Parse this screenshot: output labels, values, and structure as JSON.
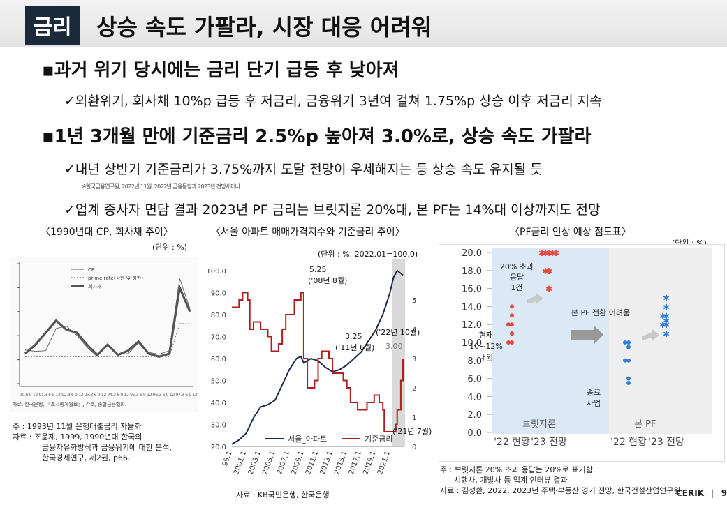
{
  "header": {
    "tag": "금리",
    "title": "상승 속도 가팔라, 시장 대응 어려워"
  },
  "bullets": [
    {
      "text": "과거 위기 당시에는 금리 단기 급등 후 낮아져",
      "subs": [
        "외환위기, 회사채 10%p 급등 후 저금리, 금융위기 3년여 걸쳐 1.75%p 상승 이후 저금리 지속"
      ]
    },
    {
      "text": "1년 3개월 만에 기준금리 2.5%p 높아져 3.0%로, 상승 속도 가팔라",
      "subs": [
        "내년 상반기 기준금리가 3.75%까지 도달 전망이 우세해지는 등 상승 속도 유지될 듯",
        "업계 종사자 면담 결과 2023년 PF 금리는 브릿지론 20%대, 본 PF는 14%대 이상까지도 전망"
      ]
    }
  ],
  "footnote": "※한국금융연구원, 2022년 11월, 2022년 금융동향과 2023년 전망세미나",
  "left_panel": {
    "caption": "〈1990년대 CP, 회사채 추이〉",
    "unit": "(단위 : %)",
    "legend": [
      "CP",
      "prime rate(상한 및 하한)",
      "회사채"
    ],
    "inner_source": "자료: 한국은행, 『조사통계월보』, 각호, 종합금융협회.",
    "notes": [
      "주 : 1993년 11월 은행대출금리 자율화",
      "자료 : 조윤제, 1999, 1990년대 한국의",
      "금융자유화방식과 금융위기에 대한 분석,",
      "한국경제연구, 제2권, p66."
    ]
  },
  "mid_panel": {
    "caption": "〈서울 아파트 매매가격지수와 기준금리 추이〉",
    "unit": "(단위 : %, 2022.01=100.0)",
    "source": "자료 : KB국민은행, 한국은행",
    "annotations": [
      {
        "value": "5.25",
        "label": "('08년 8월)"
      },
      {
        "value": "3.25",
        "label": "('11년 6월)"
      },
      {
        "value": "3.00",
        "label": "('22년 10월)"
      },
      {
        "value": "",
        "label": "('21년 7월)"
      }
    ]
  },
  "right_panel": {
    "caption": "〈PF금리 인상 예상 점도표〉",
    "unit": "(단위 : %)",
    "region_labels": [
      "브릿지론",
      "본 PF"
    ],
    "labels": [
      "20% 초과",
      "응답",
      "1건",
      "현재",
      "10~12%",
      "내외",
      "본 PF 전환 어려움",
      "종료",
      "사업"
    ],
    "notes": [
      "주 : 브릿지론 20% 초과 응답는 20%로 표기함.",
      "시행사, 개발사 등 업계 인터뷰 결과",
      "자료 : 김성환, 2022, 2023년 주택·부동산 경기 전망, 한국건설산업연구원"
    ]
  },
  "footer": {
    "brand": "CERIK",
    "page": "9"
  },
  "chart_data": [
    {
      "type": "line",
      "title": "1990년대 CP, 회사채 추이",
      "ylabel": "%",
      "series": [
        {
          "name": "CP",
          "values": [
            13.6,
            13.4,
            13.5,
            17.2,
            17.6,
            16.1,
            14.1,
            12.5,
            14.6,
            12.9,
            13.0,
            14.8,
            13.2,
            12.9,
            13.5,
            25.5,
            20.5
          ]
        },
        {
          "name": "prime rate(상한 및 하한)",
          "values": [
            12.5,
            12.5,
            12.5,
            12.5,
            12.5,
            12.5,
            12.5,
            12.5,
            12.5,
            12.5,
            12.5,
            12.5,
            12.5,
            12.5,
            12.5,
            18.0,
            18.0
          ]
        },
        {
          "name": "회사채",
          "values": [
            13.0,
            14.5,
            16.5,
            18.5,
            17.0,
            16.5,
            14.5,
            12.8,
            14.5,
            12.8,
            13.5,
            15.0,
            13.0,
            12.5,
            13.0,
            24.0,
            20.0
          ]
        }
      ]
    },
    {
      "type": "line",
      "title": "서울 아파트 매매가격지수와 기준금리 추이",
      "x_ticks": [
        "99.1",
        "2001.1",
        "2003.1",
        "2005.1",
        "2007.1",
        "2009.1",
        "2011.1",
        "2013.1",
        "2015.1",
        "2017.1",
        "2019.1",
        "2021.1"
      ],
      "ylim_left": [
        20,
        100
      ],
      "ylim_right": [
        0,
        6
      ],
      "yticks_left": [
        "20.0",
        "30.0",
        "40.0",
        "50.0",
        "60.0",
        "70.0",
        "80.0",
        "90.0",
        "100.0"
      ],
      "yticks_right": [
        "0",
        "1",
        "2",
        "3",
        "4",
        "5"
      ],
      "series": [
        {
          "name": "서울_아파트",
          "axis": "left",
          "x": [
            1999.0,
            2000.0,
            2001.0,
            2002.0,
            2003.0,
            2004.0,
            2005.0,
            2006.0,
            2007.0,
            2008.0,
            2008.6,
            2009.0,
            2010.0,
            2011.0,
            2012.0,
            2013.0,
            2014.0,
            2015.0,
            2016.0,
            2017.0,
            2018.0,
            2019.0,
            2020.0,
            2021.0,
            2021.5,
            2022.0,
            2022.8
          ],
          "values": [
            21,
            23,
            26,
            33,
            38,
            39,
            41,
            48,
            55,
            60,
            61,
            58,
            60,
            59,
            56,
            54,
            55,
            57,
            60,
            63,
            68,
            73,
            80,
            90,
            97,
            100,
            98
          ]
        },
        {
          "name": "기준금리",
          "axis": "right",
          "x": [
            1999.0,
            2000.0,
            2000.5,
            2001.2,
            2001.5,
            2002.0,
            2002.5,
            2003.0,
            2004.0,
            2004.5,
            2005.5,
            2006.0,
            2006.5,
            2007.0,
            2007.7,
            2008.6,
            2009.0,
            2009.5,
            2010.5,
            2011.0,
            2011.5,
            2012.5,
            2013.0,
            2014.5,
            2015.0,
            2015.5,
            2016.5,
            2017.8,
            2018.8,
            2019.5,
            2020.0,
            2020.2,
            2021.5,
            2021.8,
            2022.0,
            2022.5,
            2022.8
          ],
          "values": [
            4.75,
            5.0,
            5.25,
            5.0,
            4.0,
            4.25,
            4.25,
            4.0,
            3.75,
            3.25,
            3.5,
            4.0,
            4.5,
            4.5,
            5.0,
            5.25,
            3.0,
            2.0,
            2.25,
            3.0,
            3.25,
            3.0,
            2.5,
            2.25,
            2.0,
            1.5,
            1.25,
            1.5,
            1.75,
            1.5,
            1.25,
            0.5,
            0.5,
            0.75,
            1.25,
            2.25,
            3.0
          ]
        }
      ]
    },
    {
      "type": "scatter",
      "title": "PF금리 인상 예상 점도표",
      "ylim": [
        0,
        20
      ],
      "yticks": [
        "0.0",
        "2.0",
        "4.0",
        "6.0",
        "8.0",
        "10.0",
        "12.0",
        "14.0",
        "16.0",
        "18.0",
        "20.0"
      ],
      "categories": [
        "'22 현황",
        "'23 전망",
        "'22 현황",
        "'23 전망"
      ],
      "groups": [
        "브릿지론",
        "브릿지론",
        "본 PF",
        "본 PF"
      ],
      "series": [
        {
          "name": "브릿지론",
          "points": [
            {
              "x": "'22 현황",
              "y": 14.0
            },
            {
              "x": "'22 현황",
              "y": 13.0
            },
            {
              "x": "'22 현황",
              "y": 12.0
            },
            {
              "x": "'22 현황",
              "y": 12.0
            },
            {
              "x": "'22 현황",
              "y": 11.0
            },
            {
              "x": "'22 현황",
              "y": 10.0
            },
            {
              "x": "'22 현황",
              "y": 10.0
            },
            {
              "x": "'23 전망",
              "y": 20.0
            },
            {
              "x": "'23 전망",
              "y": 20.0
            },
            {
              "x": "'23 전망",
              "y": 20.0
            },
            {
              "x": "'23 전망",
              "y": 20.0
            },
            {
              "x": "'23 전망",
              "y": 20.0
            },
            {
              "x": "'23 전망",
              "y": 18.0
            },
            {
              "x": "'23 전망",
              "y": 18.0
            },
            {
              "x": "'23 전망",
              "y": 16.0
            }
          ]
        },
        {
          "name": "본 PF",
          "points": [
            {
              "x": "'22 현황",
              "y": 10.0
            },
            {
              "x": "'22 현황",
              "y": 10.0
            },
            {
              "x": "'22 현황",
              "y": 9.5
            },
            {
              "x": "'22 현황",
              "y": 8.0
            },
            {
              "x": "'22 현황",
              "y": 8.0
            },
            {
              "x": "'22 현황",
              "y": 6.0
            },
            {
              "x": "'22 현황",
              "y": 5.5
            },
            {
              "x": "'23 전망",
              "y": 15.0
            },
            {
              "x": "'23 전망",
              "y": 14.0
            },
            {
              "x": "'23 전망",
              "y": 13.0
            },
            {
              "x": "'23 전망",
              "y": 13.0
            },
            {
              "x": "'23 전망",
              "y": 12.5
            },
            {
              "x": "'23 전망",
              "y": 12.0
            },
            {
              "x": "'23 전망",
              "y": 12.0
            },
            {
              "x": "'23 전망",
              "y": 11.0
            }
          ]
        }
      ]
    }
  ]
}
